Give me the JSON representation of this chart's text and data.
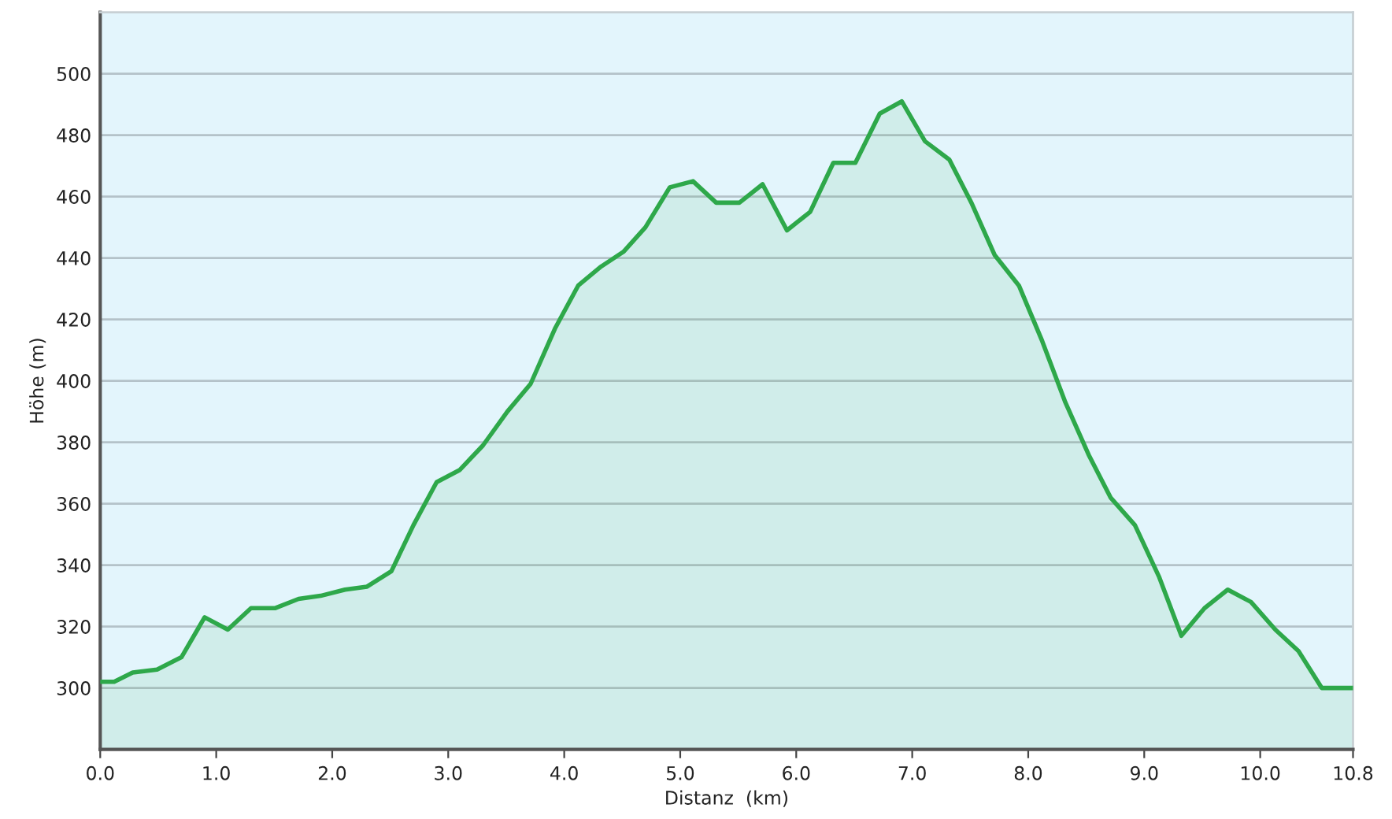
{
  "chart_data": {
    "type": "area",
    "xlabel": "Distanz  (km)",
    "ylabel": "Höhe (m)",
    "x": [
      0,
      0.12,
      0.28,
      0.49,
      0.7,
      0.9,
      1.1,
      1.3,
      1.51,
      1.71,
      1.9,
      2.11,
      2.3,
      2.51,
      2.7,
      2.9,
      3.1,
      3.3,
      3.51,
      3.71,
      3.92,
      4.12,
      4.31,
      4.51,
      4.7,
      4.91,
      5.11,
      5.31,
      5.51,
      5.71,
      5.92,
      6.12,
      6.32,
      6.51,
      6.72,
      6.91,
      7.11,
      7.32,
      7.51,
      7.71,
      7.92,
      8.12,
      8.32,
      8.52,
      8.71,
      8.92,
      9.13,
      9.32,
      9.52,
      9.72,
      9.92,
      10.13,
      10.33,
      10.53,
      10.8
    ],
    "series": [
      {
        "color": "#2ea84a",
        "values": [
          302,
          302,
          305,
          306,
          310,
          323,
          319,
          326,
          326,
          329,
          330,
          332,
          333,
          338,
          353,
          367,
          371,
          379,
          390,
          399,
          417,
          431,
          437,
          442,
          450,
          463,
          465,
          458,
          458,
          464,
          449,
          455,
          471,
          471,
          487,
          491,
          478,
          472,
          458,
          441,
          431,
          413,
          393,
          376,
          362,
          353,
          336,
          317,
          326,
          332,
          328,
          319,
          312,
          300,
          300
        ]
      }
    ],
    "xlim": [
      0,
      10.8
    ],
    "ylim": [
      280,
      520
    ],
    "xticks": [
      {
        "value": 0,
        "label": "0.0"
      },
      {
        "value": 1,
        "label": "1.0"
      },
      {
        "value": 2,
        "label": "2.0"
      },
      {
        "value": 3,
        "label": "3.0"
      },
      {
        "value": 4,
        "label": "4.0"
      },
      {
        "value": 5,
        "label": "5.0"
      },
      {
        "value": 6,
        "label": "6.0"
      },
      {
        "value": 7,
        "label": "7.0"
      },
      {
        "value": 8,
        "label": "8.0"
      },
      {
        "value": 9,
        "label": "9.0"
      },
      {
        "value": 10,
        "label": "10.0"
      },
      {
        "value": 10.8,
        "label": "10.8"
      }
    ],
    "yticks": [
      300,
      320,
      340,
      360,
      380,
      400,
      420,
      440,
      460,
      480,
      500
    ],
    "grid": "y",
    "line_style": "solid"
  }
}
